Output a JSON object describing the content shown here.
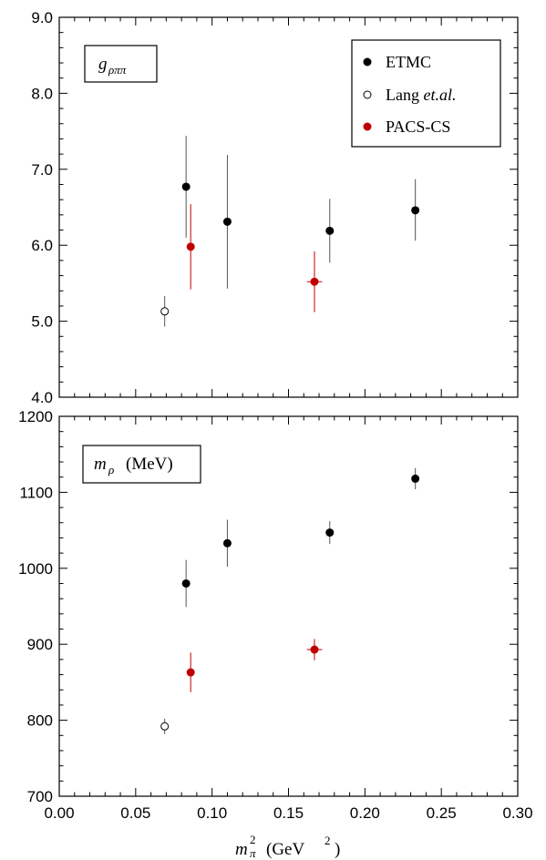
{
  "chart_data": [
    {
      "type": "scatter",
      "panel": "top",
      "annotation": "g_{ρππ}",
      "annotation_parts": {
        "symbol": "g",
        "subscript": "ρππ"
      },
      "xlim": [
        0.0,
        0.3
      ],
      "ylim": [
        4.0,
        9.0
      ],
      "y_ticks": [
        "4.0",
        "5.0",
        "6.0",
        "7.0",
        "8.0",
        "9.0"
      ],
      "x_ticks_labeled": false,
      "grid": false,
      "legend_position": "top-right",
      "legend_entries": [
        "ETMC",
        "Lang et.al.",
        "PACS-CS"
      ],
      "legend_parts": {
        "lang_prefix": "Lang",
        "lang_suffix": "et.al."
      },
      "series": [
        {
          "name": "ETMC",
          "marker": "filled",
          "color": "#000000",
          "points": [
            {
              "x": 0.083,
              "y": 6.77,
              "y_lo": 6.1,
              "y_hi": 7.44
            },
            {
              "x": 0.11,
              "y": 6.31,
              "y_lo": 5.43,
              "y_hi": 7.19
            },
            {
              "x": 0.177,
              "y": 6.19,
              "y_lo": 5.77,
              "y_hi": 6.61
            },
            {
              "x": 0.233,
              "y": 6.46,
              "y_lo": 6.06,
              "y_hi": 6.87
            }
          ]
        },
        {
          "name": "Lang et.al.",
          "marker": "open",
          "color": "#000000",
          "points": [
            {
              "x": 0.069,
              "y": 5.13,
              "y_lo": 4.93,
              "y_hi": 5.33
            }
          ]
        },
        {
          "name": "PACS-CS",
          "marker": "filled",
          "color": "#c00000",
          "points": [
            {
              "x": 0.086,
              "y": 5.98,
              "y_lo": 5.42,
              "y_hi": 6.54,
              "x_lo": 0.0845,
              "x_hi": 0.0875
            },
            {
              "x": 0.167,
              "y": 5.52,
              "y_lo": 5.12,
              "y_hi": 5.92,
              "x_lo": 0.162,
              "x_hi": 0.172
            }
          ]
        }
      ]
    },
    {
      "type": "scatter",
      "panel": "bottom",
      "annotation": "m_ρ (MeV)",
      "annotation_parts": {
        "symbol": "m",
        "subscript": "ρ",
        "unit": "(MeV)"
      },
      "xlim": [
        0.0,
        0.3
      ],
      "ylim": [
        700,
        1200
      ],
      "x_ticks": [
        "0.00",
        "0.05",
        "0.10",
        "0.15",
        "0.20",
        "0.25",
        "0.30"
      ],
      "y_ticks": [
        "700",
        "800",
        "900",
        "1000",
        "1100",
        "1200"
      ],
      "xlabel": "m_π^2 (GeV^2)",
      "xlabel_parts": {
        "symbol": "m",
        "subscript": "π",
        "superscript": "2",
        "unit_open": "(GeV",
        "unit_sup": "2",
        "unit_close": ")"
      },
      "grid": false,
      "series": [
        {
          "name": "ETMC",
          "marker": "filled",
          "color": "#000000",
          "points": [
            {
              "x": 0.083,
              "y": 980,
              "y_lo": 949,
              "y_hi": 1011
            },
            {
              "x": 0.11,
              "y": 1033,
              "y_lo": 1002,
              "y_hi": 1064
            },
            {
              "x": 0.177,
              "y": 1047,
              "y_lo": 1032,
              "y_hi": 1062
            },
            {
              "x": 0.233,
              "y": 1118,
              "y_lo": 1104,
              "y_hi": 1132
            }
          ]
        },
        {
          "name": "Lang et.al.",
          "marker": "open",
          "color": "#000000",
          "points": [
            {
              "x": 0.069,
              "y": 792,
              "y_lo": 782,
              "y_hi": 802
            }
          ]
        },
        {
          "name": "PACS-CS",
          "marker": "filled",
          "color": "#c00000",
          "points": [
            {
              "x": 0.086,
              "y": 863,
              "y_lo": 837,
              "y_hi": 889,
              "x_lo": 0.084,
              "x_hi": 0.088
            },
            {
              "x": 0.167,
              "y": 893,
              "y_lo": 879,
              "y_hi": 907,
              "x_lo": 0.162,
              "x_hi": 0.172
            }
          ]
        }
      ]
    }
  ]
}
